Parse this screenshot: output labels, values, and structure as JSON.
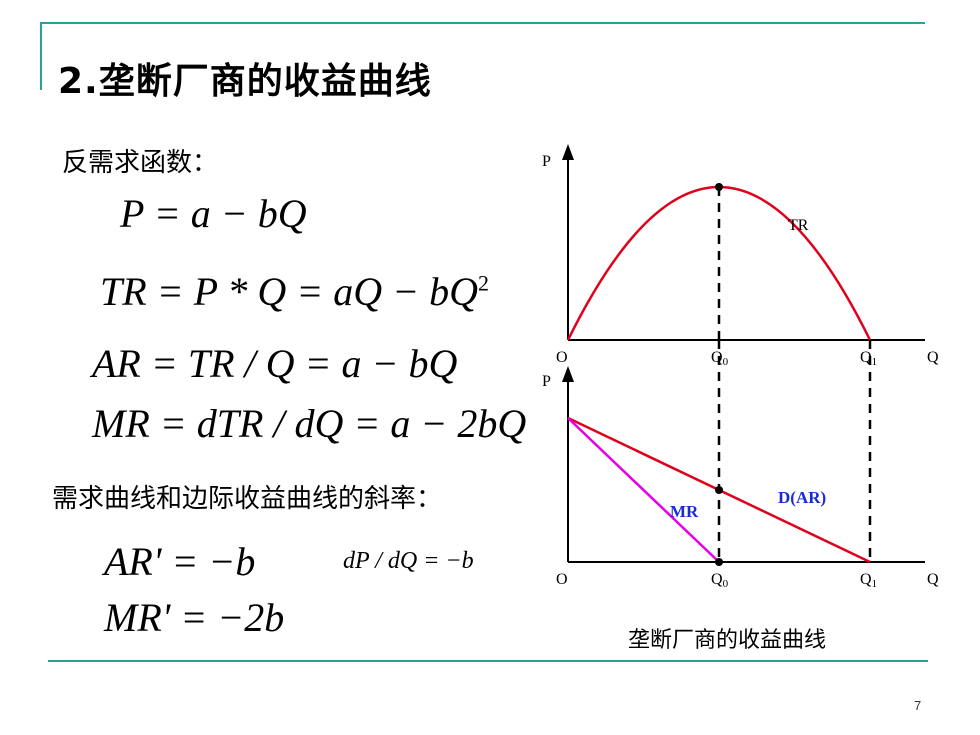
{
  "title": "2.垄断厂商的收益曲线",
  "inverse_demand_label": "反需求函数：",
  "equations": {
    "p": "P = a − bQ",
    "tr_prefix": "TR = P * Q = aQ − bQ",
    "tr_exp": "2",
    "ar": "AR = TR / Q = a − bQ",
    "mr": "MR = dTR / dQ = a − 2bQ"
  },
  "slope_label": "需求曲线和边际收益曲线的斜率：",
  "slopes": {
    "ar_prime": "AR' = −b",
    "dpdq": "dP / dQ = −b",
    "mr_prime": "MR' = −2b"
  },
  "diagram": {
    "top": {
      "y_axis": "P",
      "origin": "O",
      "x_axis": "Q",
      "q0": "Q",
      "q0_sub": "0",
      "q1": "Q",
      "q1_sub": "1",
      "curve_label": "TR"
    },
    "bottom": {
      "y_axis": "P",
      "origin": "O",
      "x_axis": "Q",
      "q0": "Q",
      "q0_sub": "0",
      "q1": "Q",
      "q1_sub": "1",
      "mr_label": "MR",
      "d_label": "D(AR)"
    },
    "colors": {
      "tr": "#e0001b",
      "demand": "#e0001b",
      "mr": "#e600e6",
      "label_blue": "#1a2bd6"
    }
  },
  "caption": "垄断厂商的收益曲线",
  "page_number": "7"
}
